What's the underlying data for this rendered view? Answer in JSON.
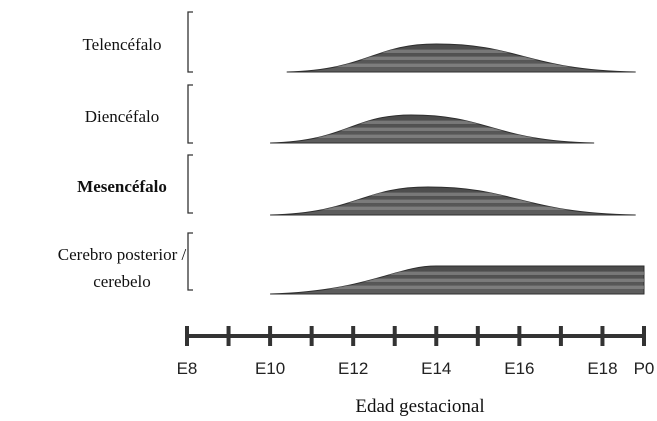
{
  "chart_data": {
    "type": "area",
    "xlabel": "Edad gestacional",
    "x_ticks": [
      {
        "x": 8,
        "label": "E8"
      },
      {
        "x": 9,
        "label": ""
      },
      {
        "x": 10,
        "label": "E10"
      },
      {
        "x": 11,
        "label": ""
      },
      {
        "x": 12,
        "label": "E12"
      },
      {
        "x": 13,
        "label": ""
      },
      {
        "x": 14,
        "label": "E14"
      },
      {
        "x": 15,
        "label": ""
      },
      {
        "x": 16,
        "label": "E16"
      },
      {
        "x": 17,
        "label": ""
      },
      {
        "x": 18,
        "label": "E18"
      },
      {
        "x": 19,
        "label": "P0"
      }
    ],
    "xlim": [
      8,
      19
    ],
    "series": [
      {
        "name": "Telencéfalo",
        "bold": false,
        "start": 10.4,
        "peak": 14,
        "end": 18.8,
        "plateau": false
      },
      {
        "name": "Diencéfalo",
        "bold": false,
        "start": 10,
        "peak": 13.4,
        "end": 17.8,
        "plateau": false
      },
      {
        "name": "Mesencéfalo",
        "bold": true,
        "start": 10,
        "peak": 13.8,
        "end": 18.8,
        "plateau": false
      },
      {
        "name": "Cerebro posterior / cerebelo",
        "bold": false,
        "label_lines": [
          "Cerebro posterior /",
          "cerebelo"
        ],
        "start": 10,
        "peak": 14,
        "end": 19,
        "plateau": true
      }
    ]
  }
}
